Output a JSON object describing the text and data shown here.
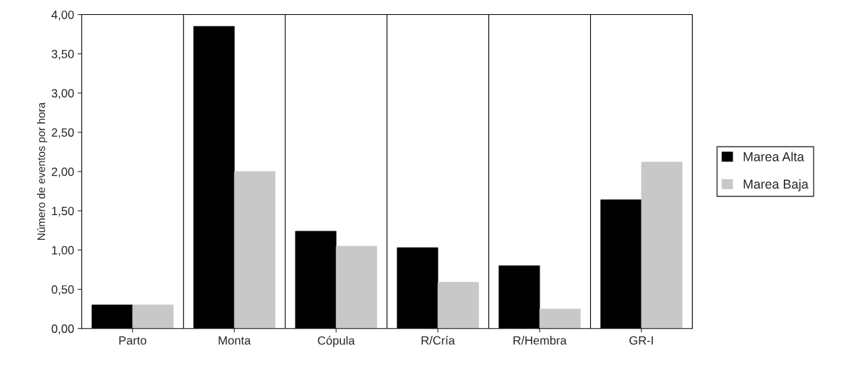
{
  "chart_data": {
    "type": "bar",
    "ylabel": "Número de eventos por hora",
    "categories": [
      "Parto",
      "Monta",
      "Cópula",
      "R/Cría",
      "R/Hembra",
      "GR-I"
    ],
    "series": [
      {
        "name": "Marea Alta",
        "color": "#000000",
        "values": [
          0.3,
          3.85,
          1.24,
          1.03,
          0.8,
          1.64
        ]
      },
      {
        "name": "Marea Baja",
        "color": "#c8c8c8",
        "values": [
          0.3,
          2.0,
          1.05,
          0.59,
          0.25,
          2.12
        ]
      }
    ],
    "ylim": [
      0,
      4
    ],
    "yticks": [
      {
        "value": 0,
        "label": "0,00"
      },
      {
        "value": 0.5,
        "label": "0,50"
      },
      {
        "value": 1,
        "label": "1,00"
      },
      {
        "value": 1.5,
        "label": "1,50"
      },
      {
        "value": 2,
        "label": "2,00"
      },
      {
        "value": 2.5,
        "label": "2,50"
      },
      {
        "value": 3,
        "label": "3,00"
      },
      {
        "value": 3.5,
        "label": "3,50"
      },
      {
        "value": 4,
        "label": "4,00"
      }
    ],
    "grid": "x",
    "legend": "right"
  }
}
